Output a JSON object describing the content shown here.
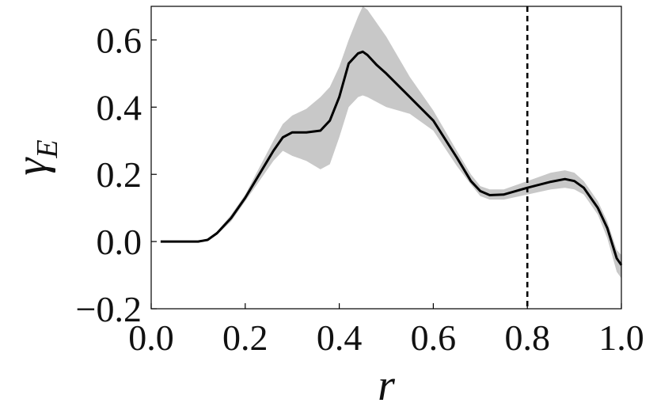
{
  "chart_data": {
    "type": "line",
    "xlabel": "r",
    "ylabel": {
      "main": "γ",
      "sub": "E"
    },
    "xlim": [
      0.0,
      1.0
    ],
    "ylim": [
      -0.2,
      0.7
    ],
    "xticks": [
      "0.0",
      "0.2",
      "0.4",
      "0.6",
      "0.8",
      "1.0"
    ],
    "yticks": [
      "−0.2",
      "0.0",
      "0.2",
      "0.4",
      "0.6"
    ],
    "grid": false,
    "vline": {
      "x": 0.8,
      "style": "dashed"
    },
    "colors": {
      "line": "#000000",
      "band": "#c8c8c8"
    },
    "series": [
      {
        "x": [
          0.02,
          0.05,
          0.1,
          0.12,
          0.14,
          0.17,
          0.2,
          0.23,
          0.26,
          0.28,
          0.3,
          0.33,
          0.36,
          0.38,
          0.4,
          0.42,
          0.44,
          0.45,
          0.46,
          0.48,
          0.5,
          0.55,
          0.6,
          0.65,
          0.68,
          0.7,
          0.72,
          0.75,
          0.8,
          0.85,
          0.88,
          0.9,
          0.92,
          0.95,
          0.97,
          0.99,
          1.0
        ],
        "y": [
          0.0,
          0.0,
          0.0,
          0.005,
          0.025,
          0.07,
          0.13,
          0.2,
          0.27,
          0.31,
          0.325,
          0.325,
          0.33,
          0.36,
          0.43,
          0.53,
          0.56,
          0.565,
          0.555,
          0.525,
          0.5,
          0.43,
          0.36,
          0.25,
          0.18,
          0.15,
          0.138,
          0.14,
          0.16,
          0.178,
          0.186,
          0.18,
          0.16,
          0.1,
          0.04,
          -0.05,
          -0.07
        ],
        "lower": [
          0.0,
          0.0,
          0.0,
          0.003,
          0.02,
          0.06,
          0.12,
          0.18,
          0.24,
          0.27,
          0.255,
          0.24,
          0.215,
          0.23,
          0.31,
          0.4,
          0.43,
          0.435,
          0.43,
          0.415,
          0.4,
          0.38,
          0.33,
          0.225,
          0.17,
          0.135,
          0.125,
          0.125,
          0.14,
          0.155,
          0.16,
          0.155,
          0.14,
          0.08,
          0.01,
          -0.09,
          -0.11
        ],
        "upper": [
          0.0,
          0.0,
          0.0,
          0.008,
          0.03,
          0.08,
          0.14,
          0.22,
          0.3,
          0.35,
          0.375,
          0.395,
          0.43,
          0.46,
          0.52,
          0.6,
          0.67,
          0.7,
          0.69,
          0.65,
          0.61,
          0.49,
          0.39,
          0.27,
          0.2,
          0.165,
          0.155,
          0.155,
          0.18,
          0.205,
          0.212,
          0.205,
          0.18,
          0.12,
          0.06,
          -0.025,
          -0.04
        ]
      }
    ]
  }
}
